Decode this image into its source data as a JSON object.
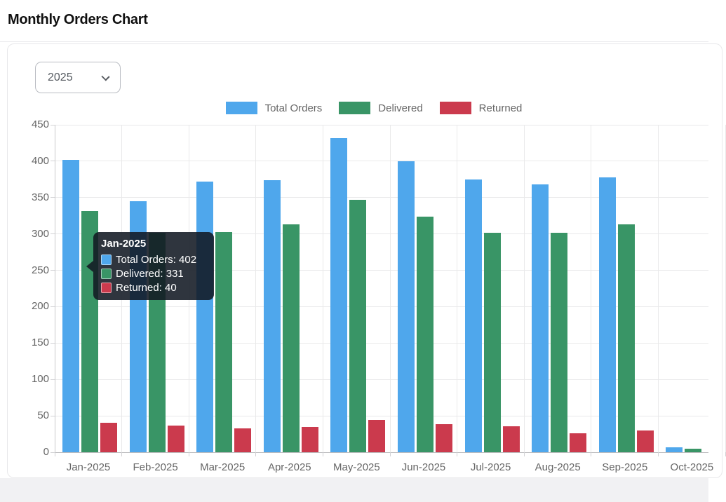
{
  "header": {
    "title": "Monthly Orders Chart"
  },
  "controls": {
    "year_select": {
      "value": "2025"
    }
  },
  "chart_data": {
    "type": "bar",
    "title": "Monthly Orders Chart",
    "categories": [
      "Jan-2025",
      "Feb-2025",
      "Mar-2025",
      "Apr-2025",
      "May-2025",
      "Jun-2025",
      "Jul-2025",
      "Aug-2025",
      "Sep-2025",
      "Oct-2025"
    ],
    "series": [
      {
        "name": "Total Orders",
        "color": "#4FA7EC",
        "values": [
          402,
          345,
          372,
          374,
          432,
          400,
          375,
          368,
          378,
          7
        ]
      },
      {
        "name": "Delivered",
        "color": "#399566",
        "values": [
          331,
          302,
          303,
          313,
          347,
          324,
          302,
          302,
          313,
          5
        ]
      },
      {
        "name": "Returned",
        "color": "#CB3A4D",
        "values": [
          40,
          37,
          33,
          35,
          44,
          39,
          36,
          26,
          30,
          0
        ]
      }
    ],
    "xlabel": "",
    "ylabel": "",
    "ylim": [
      0,
      450
    ],
    "ytick_step": 50,
    "grid": true,
    "legend_position": "top"
  },
  "tooltip": {
    "title": "Jan-2025",
    "rows": [
      {
        "series": "Total Orders",
        "value": 402,
        "text": "Total Orders: 402"
      },
      {
        "series": "Delivered",
        "value": 331,
        "text": "Delivered: 331"
      },
      {
        "series": "Returned",
        "value": 40,
        "text": "Returned: 40"
      }
    ]
  }
}
